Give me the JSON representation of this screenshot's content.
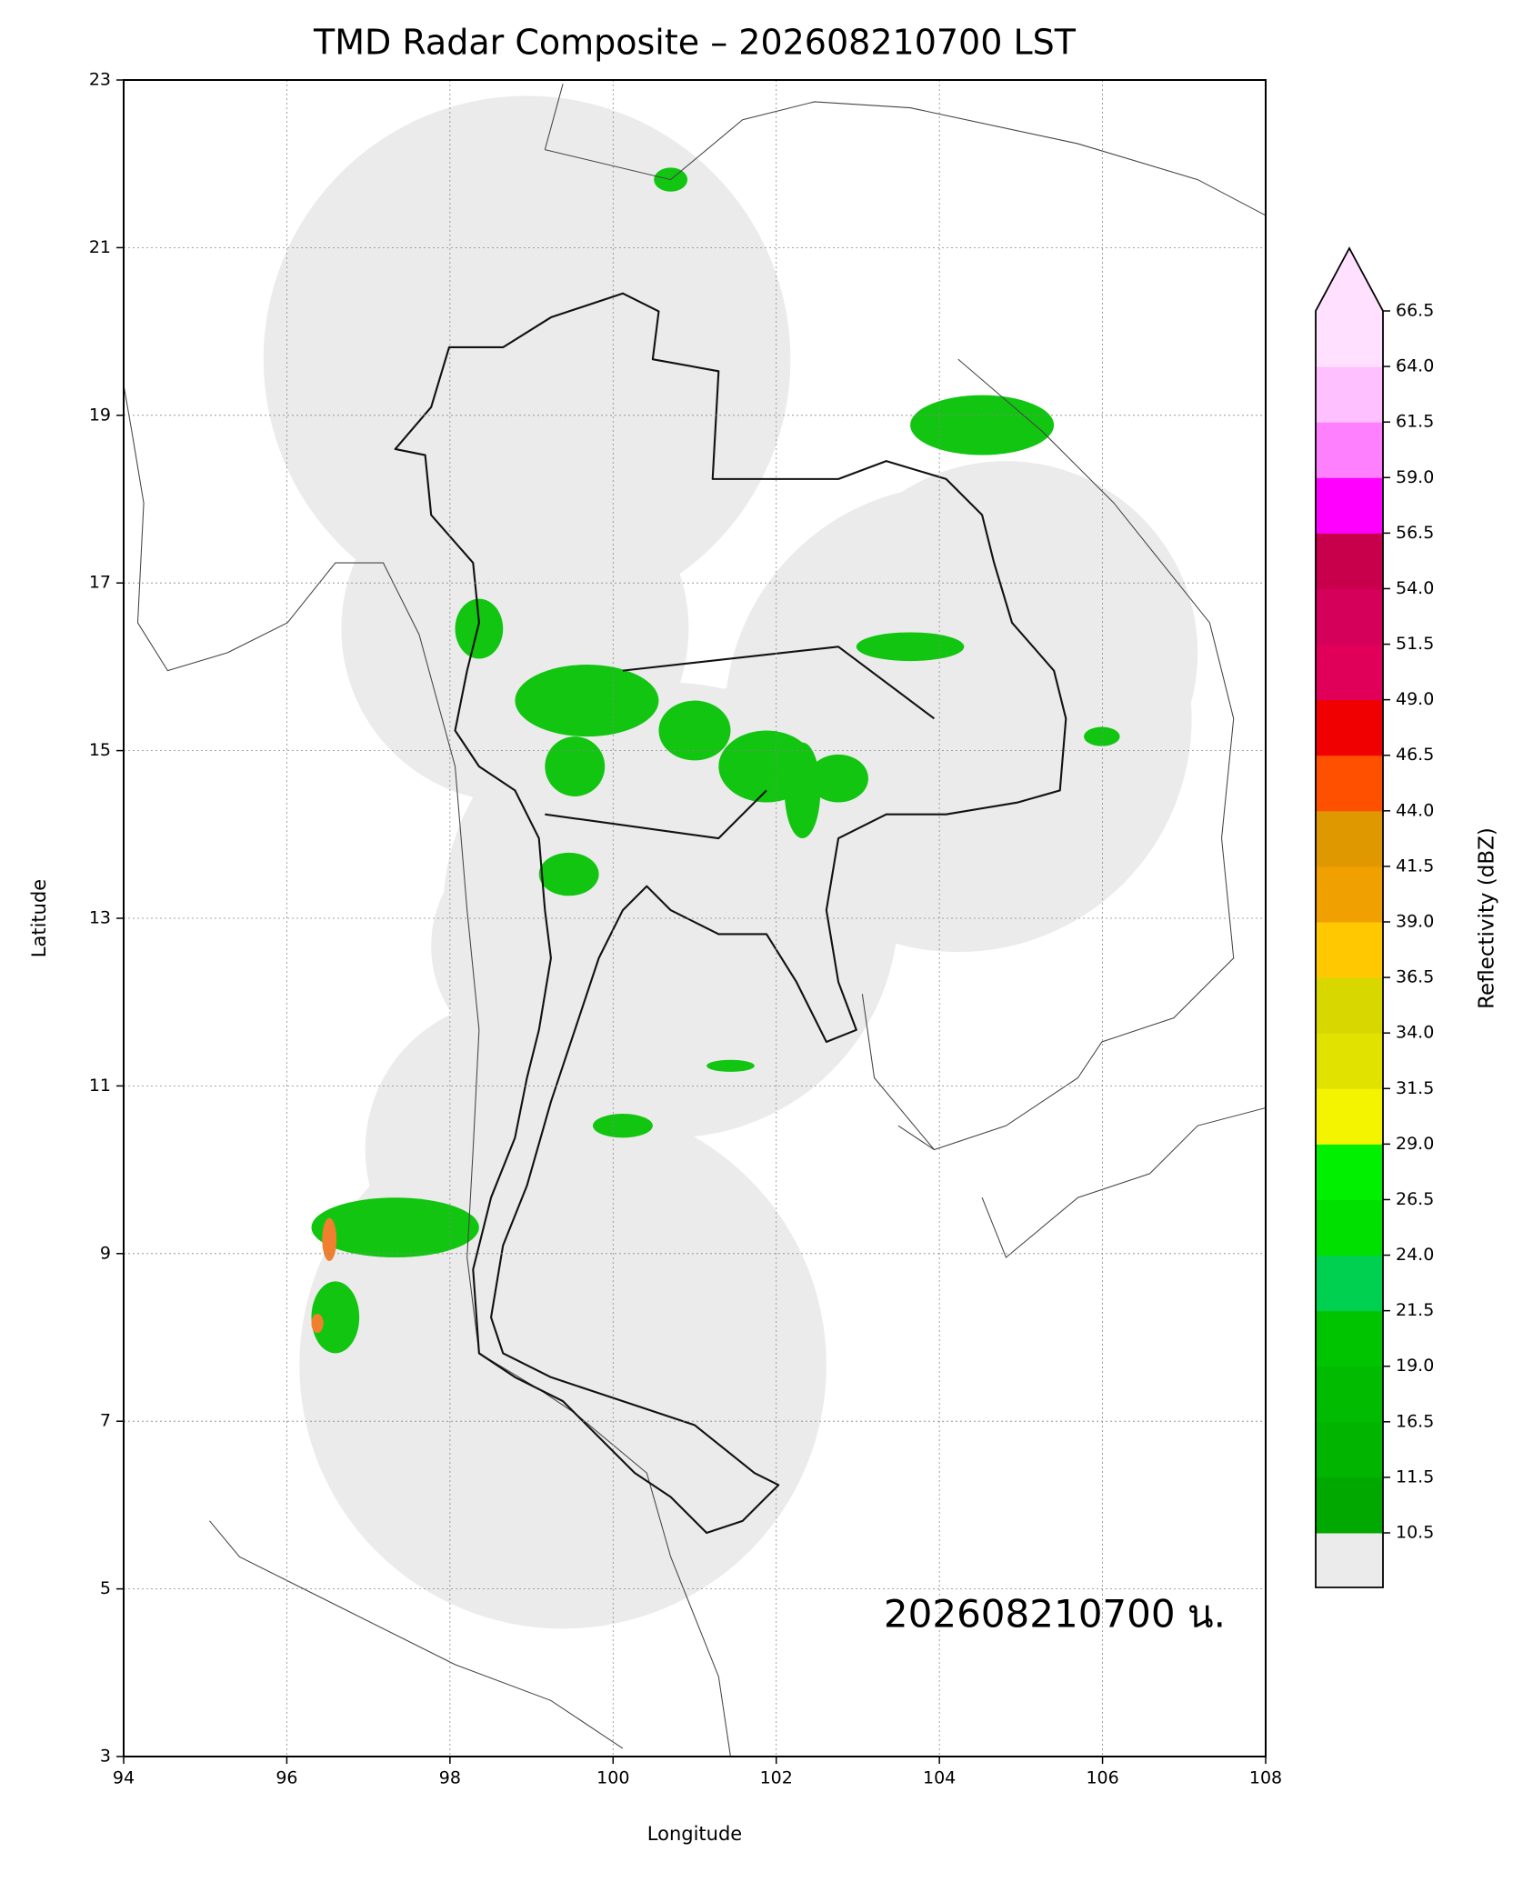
{
  "chart_data": {
    "type": "map",
    "title": "TMD Radar Composite – 202608210700 LST",
    "annotation": "202608210700 น.",
    "x_label": "Longitude",
    "y_label": "Latitude",
    "xlim": [
      94,
      108
    ],
    "xticks": [
      94,
      96,
      98,
      100,
      102,
      104,
      106,
      108
    ],
    "ylim": [
      3,
      23
    ],
    "yticks": [
      3,
      5,
      7,
      9,
      11,
      13,
      15,
      17,
      19,
      21,
      23
    ],
    "grid": true,
    "colorbar": {
      "label": "Reflectivity (dBZ)",
      "ticks": [
        10.5,
        11.5,
        16.5,
        {
          "value": 19,
          "label": "19.0"
        },
        21.5,
        {
          "value": 24,
          "label": "24.0"
        },
        26.5,
        {
          "value": 29,
          "label": "29.0"
        },
        31.5,
        {
          "value": 34,
          "label": "34.0"
        },
        36.5,
        {
          "value": 39,
          "label": "39.0"
        },
        41.5,
        {
          "value": 44,
          "label": "44.0"
        },
        46.5,
        {
          "value": 49,
          "label": "49.0"
        },
        51.5,
        {
          "value": 54,
          "label": "54.0"
        },
        56.5,
        {
          "value": 59,
          "label": "59.0"
        },
        61.5,
        {
          "value": 64,
          "label": "64.0"
        },
        66.5
      ],
      "colors": [
        "#00a800",
        "#00b400",
        "#00bb00",
        "#00c400",
        "#00d050",
        "#00e000",
        "#00f000",
        "#f4f400",
        "#e2e200",
        "#d8d800",
        "#ffc800",
        "#f0a000",
        "#e09800",
        "#ff5000",
        "#f00000",
        "#e0005a",
        "#d4005a",
        "#c8004c",
        "#ff00ff",
        "#ff80ff",
        "#ffc0ff",
        "#ffe0ff"
      ],
      "under_color": "#ebebeb",
      "over_color": "#ffe0ff"
    }
  }
}
